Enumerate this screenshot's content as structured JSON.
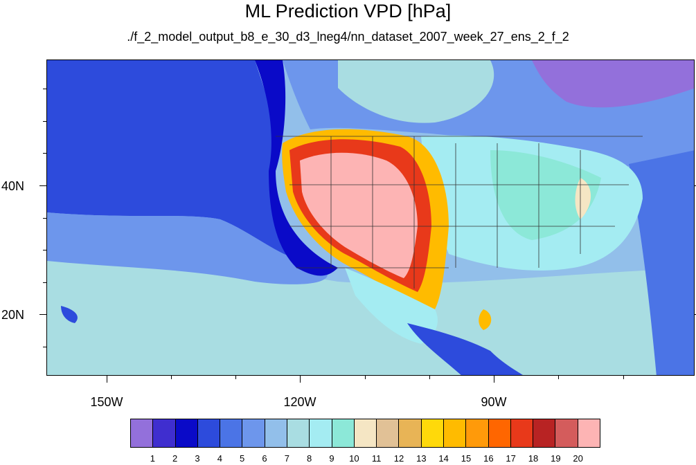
{
  "title": "ML Prediction VPD [hPa]",
  "subtitle": "./f_2_model_output_b8_e_30_d3_lneg4/nn_dataset_2007_week_27_ens_2_f_2",
  "x_ticks": [
    "150W",
    "120W",
    "90W"
  ],
  "y_ticks": [
    "40N",
    "20N"
  ],
  "colorbar": {
    "labels": [
      "1",
      "2",
      "3",
      "4",
      "5",
      "6",
      "7",
      "8",
      "9",
      "10",
      "11",
      "12",
      "13",
      "14",
      "15",
      "16",
      "17",
      "18",
      "19",
      "20"
    ],
    "colors": [
      "#9370db",
      "#3f2ecf",
      "#0a0ac8",
      "#2d4bdc",
      "#4b74e6",
      "#6d96ec",
      "#92bfea",
      "#a9dde2",
      "#a4ecf2",
      "#8ce8d8",
      "#f5e6c4",
      "#e1c196",
      "#e8b456",
      "#ffd90a",
      "#ffbb00",
      "#ff9a0a",
      "#ff6600",
      "#e8391a",
      "#b82323",
      "#d45c5c",
      "#fdb4b4"
    ]
  },
  "map": {
    "region": "North America and eastern Pacific",
    "lon_range": [
      -160,
      -62
    ],
    "lat_range": [
      11,
      60
    ],
    "projection": "cylindrical equidistant"
  }
}
